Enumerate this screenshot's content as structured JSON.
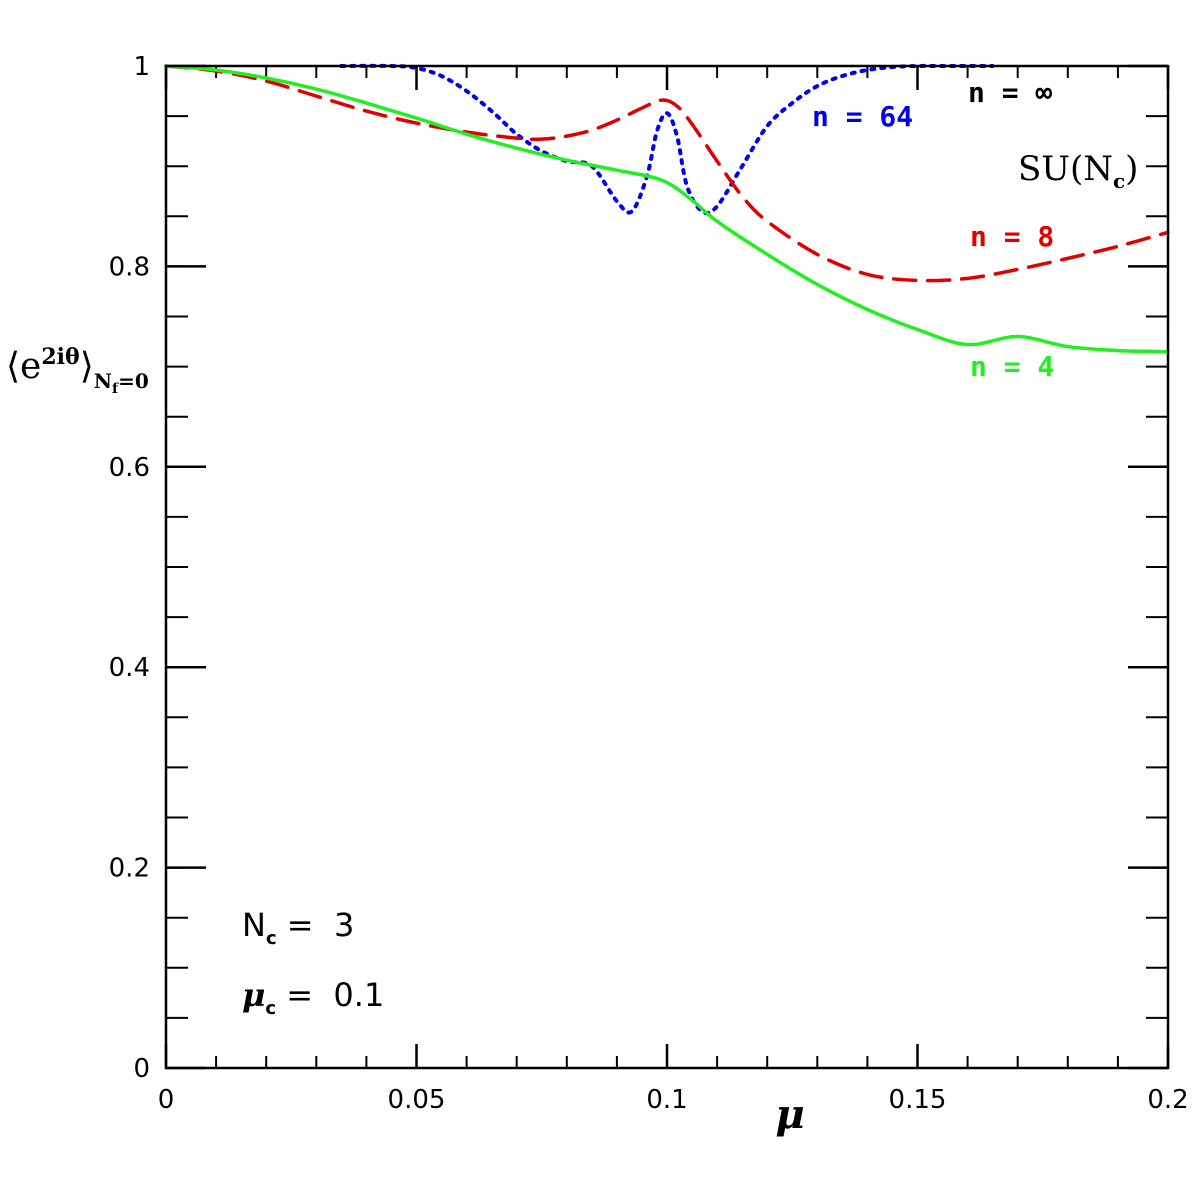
{
  "chart_data": {
    "type": "line",
    "xlabel": "μ",
    "ylabel_main": "⟨e",
    "ylabel_sup": "2iθ",
    "ylabel_close": "⟩",
    "ylabel_sub": "N",
    "ylabel_subsub": "f",
    "ylabel_sub_tail": "=0",
    "xlim": [
      0,
      0.2
    ],
    "ylim": [
      0,
      1
    ],
    "x_ticks": [
      {
        "value": 0,
        "label": "0"
      },
      {
        "value": 0.05,
        "label": "0.05"
      },
      {
        "value": 0.1,
        "label": "0.1"
      },
      {
        "value": 0.15,
        "label": "0.15"
      },
      {
        "value": 0.2,
        "label": "0.2"
      }
    ],
    "y_ticks": [
      {
        "value": 0,
        "label": "0"
      },
      {
        "value": 0.2,
        "label": "0.2"
      },
      {
        "value": 0.4,
        "label": "0.4"
      },
      {
        "value": 0.6,
        "label": "0.6"
      },
      {
        "value": 0.8,
        "label": "0.8"
      },
      {
        "value": 1,
        "label": "1"
      }
    ],
    "x_minor_step": 0.01,
    "y_minor_step": 0.05,
    "grid": false,
    "series": [
      {
        "name": "n = ∞",
        "color": "#000000",
        "style": "solid",
        "x": [],
        "y": []
      },
      {
        "name": "n = 64",
        "color": "#0000ee",
        "style": "dotted",
        "x": [
          0.035,
          0.045,
          0.05,
          0.055,
          0.06,
          0.065,
          0.07,
          0.075,
          0.08,
          0.085,
          0.09,
          0.093,
          0.096,
          0.098,
          0.1,
          0.102,
          0.104,
          0.107,
          0.11,
          0.115,
          0.12,
          0.125,
          0.13,
          0.135,
          0.14,
          0.145,
          0.15,
          0.155,
          0.16,
          0.165
        ],
        "y": [
          1.0,
          1.0,
          0.998,
          0.99,
          0.975,
          0.955,
          0.932,
          0.915,
          0.905,
          0.9,
          0.865,
          0.855,
          0.89,
          0.935,
          0.953,
          0.93,
          0.88,
          0.855,
          0.86,
          0.9,
          0.94,
          0.963,
          0.98,
          0.99,
          0.996,
          0.999,
          1.0,
          1.0,
          1.0,
          1.0
        ]
      },
      {
        "name": "n = 8",
        "color": "#e00000",
        "style": "dashed",
        "x": [
          0,
          0.01,
          0.02,
          0.03,
          0.04,
          0.05,
          0.06,
          0.07,
          0.075,
          0.08,
          0.085,
          0.09,
          0.095,
          0.099,
          0.102,
          0.105,
          0.11,
          0.115,
          0.12,
          0.13,
          0.14,
          0.15,
          0.16,
          0.17,
          0.18,
          0.19,
          0.2
        ],
        "y": [
          1.0,
          0.995,
          0.985,
          0.97,
          0.955,
          0.943,
          0.934,
          0.928,
          0.927,
          0.93,
          0.936,
          0.946,
          0.958,
          0.966,
          0.96,
          0.942,
          0.905,
          0.87,
          0.845,
          0.812,
          0.792,
          0.786,
          0.788,
          0.797,
          0.808,
          0.82,
          0.834
        ]
      },
      {
        "name": "n = 4",
        "color": "#22ee22",
        "style": "solid",
        "x": [
          0,
          0.01,
          0.02,
          0.03,
          0.04,
          0.05,
          0.06,
          0.07,
          0.08,
          0.09,
          0.099,
          0.105,
          0.11,
          0.12,
          0.13,
          0.14,
          0.15,
          0.16,
          0.17,
          0.18,
          0.19,
          0.2
        ],
        "y": [
          1.0,
          0.996,
          0.988,
          0.977,
          0.963,
          0.948,
          0.932,
          0.918,
          0.906,
          0.896,
          0.886,
          0.866,
          0.845,
          0.812,
          0.782,
          0.757,
          0.737,
          0.722,
          0.73,
          0.72,
          0.716,
          0.715
        ]
      }
    ],
    "annotations": {
      "group_title": "SU(N",
      "group_sub": "c",
      "group_close": ")",
      "nc_main": "N",
      "nc_sub": "c",
      "nc_value": " =  3",
      "muc_main": "μ",
      "muc_sub": "c",
      "muc_value": " =  0.1"
    }
  }
}
